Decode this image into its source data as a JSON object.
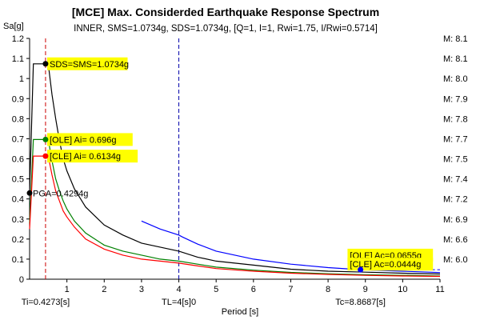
{
  "chart_data": {
    "type": "line",
    "title": "[MCE] Max. Considerded Earthquake Response Spectrum",
    "subtitle": "INNER, SMS=1.0734g, SDS=1.0734g, [Q=1, I=1, Rwi=1.75, I/Rwi=0.5714]",
    "xlabel": "Period [s]",
    "ylabel": "Sa[g]",
    "xlim": [
      0,
      11
    ],
    "ylim": [
      0,
      1.2
    ],
    "x_ticks": [
      1,
      2,
      3,
      4,
      5,
      6,
      7,
      8,
      9,
      10,
      11
    ],
    "y_ticks": [
      0.0,
      0.1,
      0.2,
      0.3,
      0.4,
      0.5,
      0.6,
      0.7,
      0.8,
      0.9,
      1.0,
      1.1,
      1.2
    ],
    "right_axis_labels": [
      {
        "y": 1.2,
        "text": "M: 8.1"
      },
      {
        "y": 1.1,
        "text": "M: 8.1"
      },
      {
        "y": 1.0,
        "text": "M: 8.0"
      },
      {
        "y": 0.9,
        "text": "M: 7.9"
      },
      {
        "y": 0.8,
        "text": "M: 7.8"
      },
      {
        "y": 0.7,
        "text": "M: 7.7"
      },
      {
        "y": 0.6,
        "text": "M: 7.5"
      },
      {
        "y": 0.5,
        "text": "M: 7.4"
      },
      {
        "y": 0.4,
        "text": "M: 7.2"
      },
      {
        "y": 0.3,
        "text": "M: 6.9"
      },
      {
        "y": 0.2,
        "text": "M: 6.6"
      },
      {
        "y": 0.1,
        "text": "M: 6.0"
      }
    ],
    "series": [
      {
        "color": "#000000",
        "x": [
          0,
          0.1,
          0.4273,
          0.5,
          0.6,
          0.7,
          0.8,
          0.9,
          1.0,
          1.2,
          1.5,
          2.0,
          2.5,
          3.0,
          3.5,
          4.0,
          4.5,
          5.0,
          6.0,
          7.0,
          8.0,
          9.0,
          10.0,
          11.0
        ],
        "y": [
          0.43,
          1.0734,
          1.0734,
          1.0734,
          0.92,
          0.8,
          0.69,
          0.6,
          0.54,
          0.45,
          0.36,
          0.27,
          0.22,
          0.18,
          0.16,
          0.14,
          0.11,
          0.09,
          0.07,
          0.05,
          0.04,
          0.035,
          0.03,
          0.026
        ]
      },
      {
        "color": "#008000",
        "x": [
          0,
          0.1,
          0.4273,
          0.5,
          0.6,
          0.7,
          0.8,
          0.9,
          1.0,
          1.2,
          1.5,
          2.0,
          2.5,
          3.0,
          3.5,
          4.0,
          4.5,
          5.0,
          6.0,
          7.0,
          8.0,
          9.0,
          10.0,
          11.0
        ],
        "y": [
          0.28,
          0.696,
          0.696,
          0.696,
          0.59,
          0.5,
          0.44,
          0.39,
          0.35,
          0.29,
          0.23,
          0.17,
          0.14,
          0.12,
          0.1,
          0.09,
          0.075,
          0.06,
          0.045,
          0.034,
          0.027,
          0.022,
          0.019,
          0.016
        ]
      },
      {
        "color": "#ff0000",
        "x": [
          0,
          0.1,
          0.4273,
          0.5,
          0.6,
          0.7,
          0.8,
          0.9,
          1.0,
          1.2,
          1.5,
          2.0,
          2.5,
          3.0,
          3.5,
          4.0,
          4.5,
          5.0,
          6.0,
          7.0,
          8.0,
          9.0,
          10.0,
          11.0
        ],
        "y": [
          0.25,
          0.6134,
          0.6134,
          0.6134,
          0.52,
          0.44,
          0.39,
          0.34,
          0.31,
          0.26,
          0.2,
          0.15,
          0.12,
          0.1,
          0.09,
          0.08,
          0.066,
          0.053,
          0.04,
          0.03,
          0.024,
          0.019,
          0.016,
          0.014
        ]
      },
      {
        "color": "#0000ff",
        "x": [
          3.0,
          3.5,
          4.0,
          4.1,
          4.5,
          5.0,
          6.0,
          7.0,
          8.0,
          8.8687,
          10.0,
          11.0
        ],
        "y": [
          0.29,
          0.25,
          0.22,
          0.21,
          0.175,
          0.14,
          0.1,
          0.075,
          0.058,
          0.0474,
          0.04,
          0.033
        ]
      }
    ],
    "vertical_lines": [
      {
        "x": 0.4273,
        "color": "#cc0000",
        "label": "Ti=0.4273[s]"
      },
      {
        "x": 4.0,
        "color": "#0000aa",
        "label": "TL=4[s]0"
      }
    ],
    "bottom_labels": [
      {
        "x": 8.8687,
        "text": "Tc=8.8687[s]"
      }
    ],
    "hlines": [
      {
        "x0": 8.8687,
        "x1": 11.0,
        "y": 0.0474,
        "color": "#0000ff"
      }
    ],
    "points": [
      {
        "x": 0.4273,
        "y": 1.0734,
        "color": "#000000"
      },
      {
        "x": 0.4273,
        "y": 0.696,
        "color": "#008000"
      },
      {
        "x": 0.4273,
        "y": 0.6134,
        "color": "#ff0000"
      },
      {
        "x": 0.0,
        "y": 0.4294,
        "color": "#000000"
      },
      {
        "x": 8.8687,
        "y": 0.0474,
        "color": "#0000ff"
      }
    ],
    "annotations": [
      {
        "x": 0.45,
        "y": 1.0734,
        "text": "SDS=SMS=1.0734g",
        "highlight": true
      },
      {
        "x": 0.45,
        "y": 0.696,
        "text": "[OLE] Ai= 0.696g",
        "highlight": true
      },
      {
        "x": 0.45,
        "y": 0.6134,
        "text": "[CLE] Ai= 0.6134g",
        "highlight": true
      },
      {
        "x": 0.0,
        "y": 0.4294,
        "text": "PGA=0.4294g",
        "highlight": false
      },
      {
        "x": 8.5,
        "y": 0.12,
        "text": "[OLE] Ac=0.0655g",
        "highlight": true
      },
      {
        "x": 8.5,
        "y": 0.075,
        "text": "[CLE] Ac=0.0444g",
        "highlight": true
      }
    ],
    "highlight_color": "#ffff00",
    "grid": false
  }
}
